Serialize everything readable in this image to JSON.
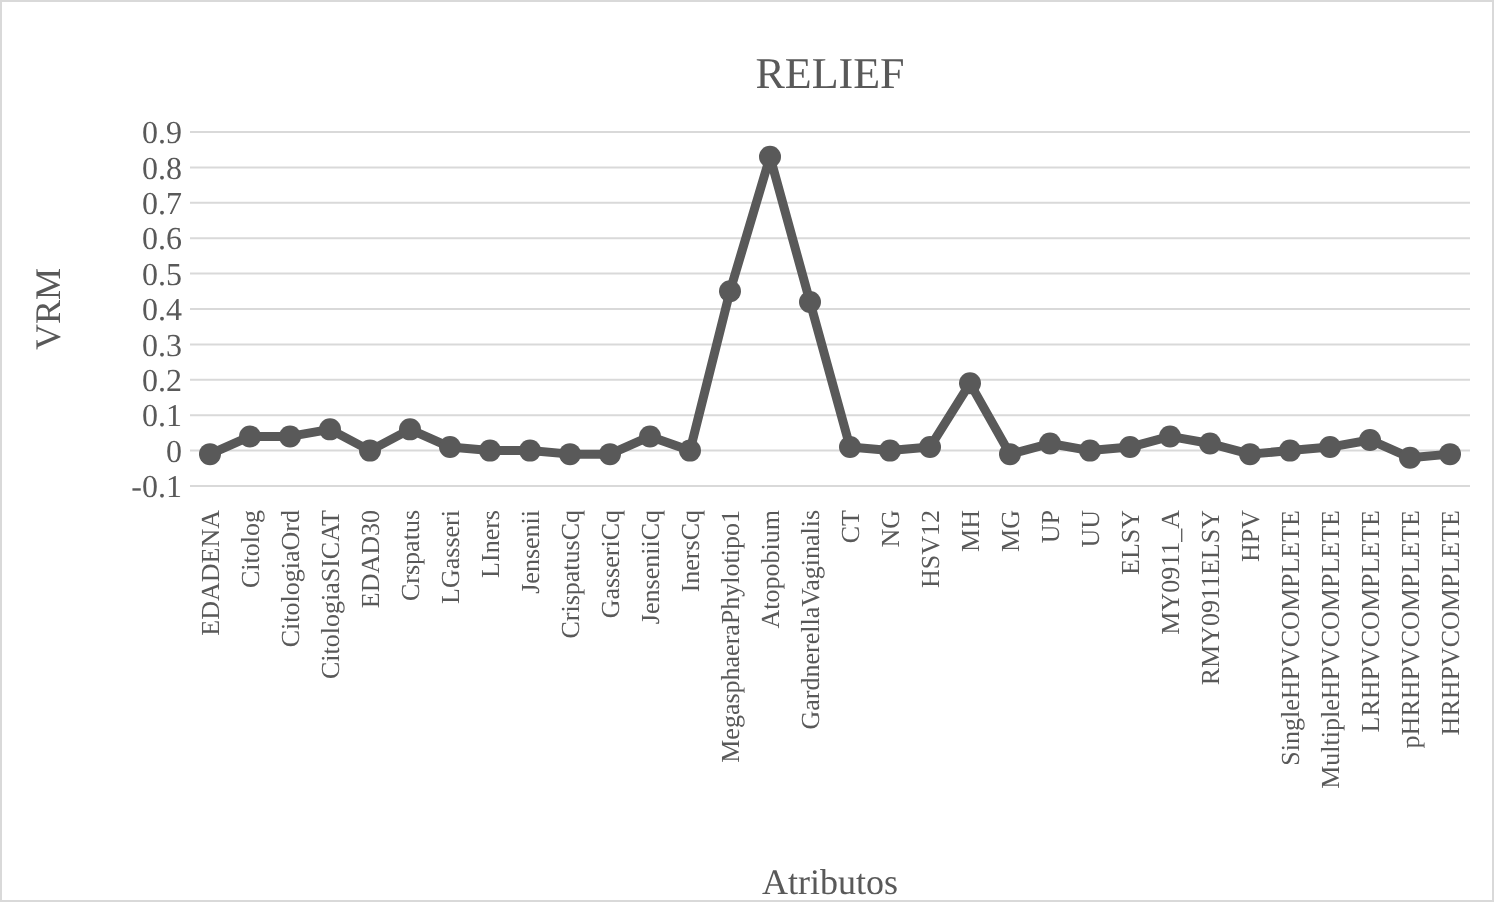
{
  "chart_data": {
    "type": "line",
    "title": "RELIEF",
    "xlabel": "Atributos",
    "ylabel": "VRM",
    "categories": [
      "EDADENA",
      "Citolog",
      "CitologiaOrd",
      "CitologiaSICAT",
      "EDAD30",
      "Crspatus",
      "LGasseri",
      "LIners",
      "Jensenii",
      "CrispatusCq",
      "GasseriCq",
      "JenseniiCq",
      "InersCq",
      "MegasphaeraPhylotipo1",
      "Atopobium",
      "GardnerellaVaginalis",
      "CT",
      "NG",
      "HSV12",
      "MH",
      "MG",
      "UP",
      "UU",
      "ELSY",
      "MY0911_A",
      "RMY0911ELSY",
      "HPV",
      "SingleHPVCOMPLETE",
      "MultipleHPVCOMPLETE",
      "LRHPVCOMPLETE",
      "pHRHPVCOMPLETE",
      "HRHPVCOMPLETE"
    ],
    "series": [
      {
        "color": "#595959",
        "values": [
          -0.01,
          0.04,
          0.04,
          0.06,
          0,
          0.06,
          0.01,
          0,
          0,
          -0.01,
          -0.01,
          0.04,
          0,
          0.45,
          0.83,
          0.42,
          0.01,
          0,
          0.01,
          0.19,
          -0.01,
          0.02,
          0,
          0.01,
          0.04,
          0.02,
          -0.01,
          0,
          0.01,
          0.03,
          -0.02,
          -0.01
        ]
      }
    ],
    "ylim": [
      -0.1,
      0.9
    ],
    "yticks": [
      -0.1,
      0,
      0.1,
      0.2,
      0.3,
      0.4,
      0.5,
      0.6,
      0.7,
      0.8,
      0.9
    ],
    "grid": "y",
    "marker": "circle",
    "line_style": "solid"
  }
}
